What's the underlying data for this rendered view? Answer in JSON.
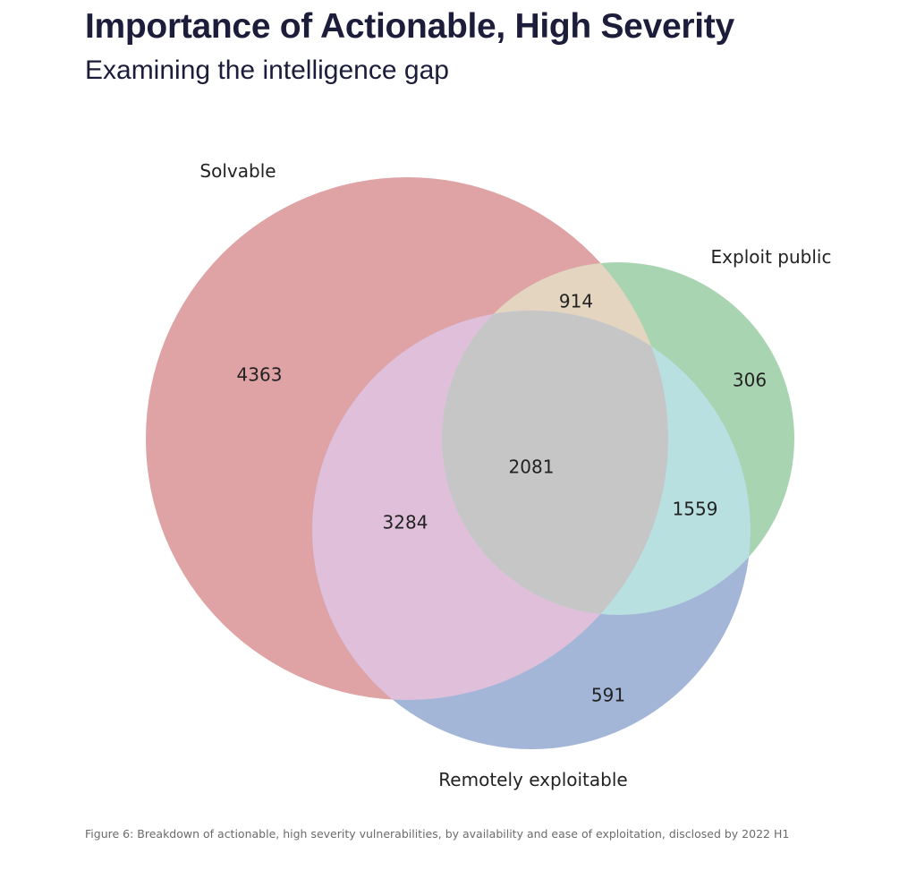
{
  "title": "Importance of Actionable, High Severity",
  "subtitle": "Examining the intelligence gap",
  "caption": "Figure 6: Breakdown of actionable, high severity vulnerabilities, by availability and ease of exploitation, disclosed by 2022 H1",
  "chart_data": {
    "type": "venn",
    "sets": [
      {
        "name": "Solvable",
        "color": "#e0a3a5"
      },
      {
        "name": "Exploit public",
        "color": "#a9d4b1"
      },
      {
        "name": "Remotely exploitable",
        "color": "#a3b6d7"
      }
    ],
    "regions": [
      {
        "sets": [
          "Solvable"
        ],
        "value": 4363
      },
      {
        "sets": [
          "Exploit public"
        ],
        "value": 306
      },
      {
        "sets": [
          "Remotely exploitable"
        ],
        "value": 591
      },
      {
        "sets": [
          "Solvable",
          "Exploit public"
        ],
        "value": 914,
        "color": "#e4d5c0"
      },
      {
        "sets": [
          "Solvable",
          "Remotely exploitable"
        ],
        "value": 3284,
        "color": "#e0bfda"
      },
      {
        "sets": [
          "Exploit public",
          "Remotely exploitable"
        ],
        "value": 1559,
        "color": "#b8e0e0"
      },
      {
        "sets": [
          "Solvable",
          "Exploit public",
          "Remotely exploitable"
        ],
        "value": 2081,
        "color": "#c6c6c6"
      }
    ]
  }
}
